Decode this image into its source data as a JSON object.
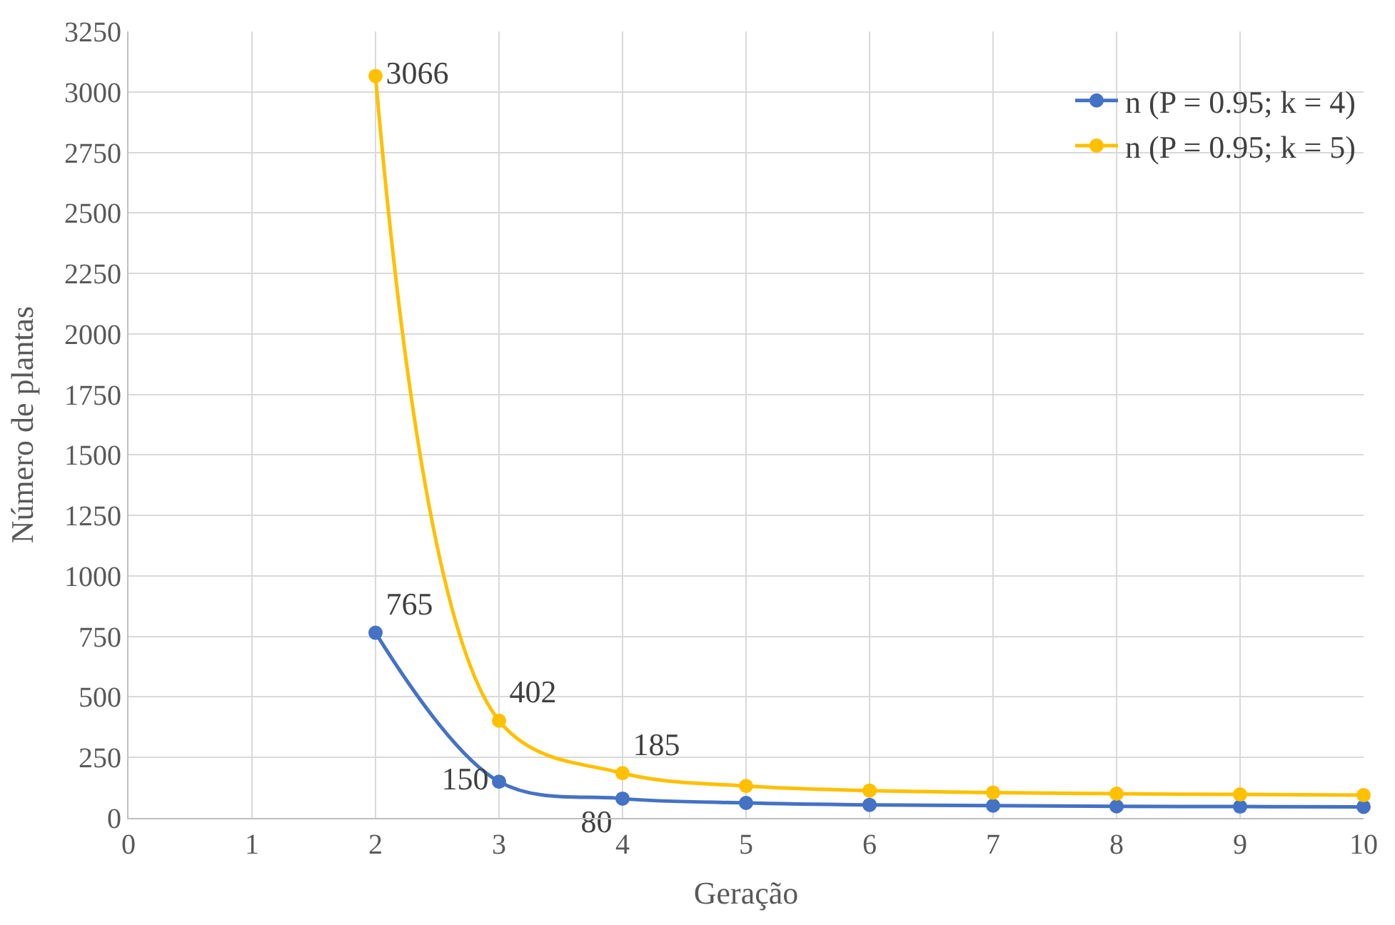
{
  "chart_data": {
    "type": "line",
    "xlabel": "Geração",
    "ylabel": "Número de plantas",
    "x": [
      2,
      3,
      4,
      5,
      6,
      7,
      8,
      9,
      10
    ],
    "series": [
      {
        "name": "n (P = 0.95; k = 4)",
        "color": "#4472c4",
        "values": [
          765,
          150,
          80,
          62,
          54,
          51,
          48,
          47,
          46
        ],
        "value_labels": [
          "765",
          "150",
          "80",
          null,
          null,
          null,
          null,
          null,
          null
        ]
      },
      {
        "name": "n (P = 0.95; k = 5)",
        "color": "#ffc000",
        "values": [
          3066,
          402,
          185,
          132,
          113,
          105,
          100,
          97,
          94
        ],
        "value_labels": [
          "3066",
          "402",
          "185",
          null,
          null,
          null,
          null,
          null,
          null
        ]
      }
    ],
    "xlim": [
      0,
      10
    ],
    "xticks": [
      0,
      1,
      2,
      3,
      4,
      5,
      6,
      7,
      8,
      9,
      10
    ],
    "ylim": [
      0,
      3250
    ],
    "yticks": [
      0,
      250,
      500,
      750,
      1000,
      1250,
      1500,
      1750,
      2000,
      2250,
      2500,
      2750,
      3000,
      3250
    ],
    "grid": true,
    "legend": "top right",
    "marker": "circle",
    "line_style": "solid"
  }
}
